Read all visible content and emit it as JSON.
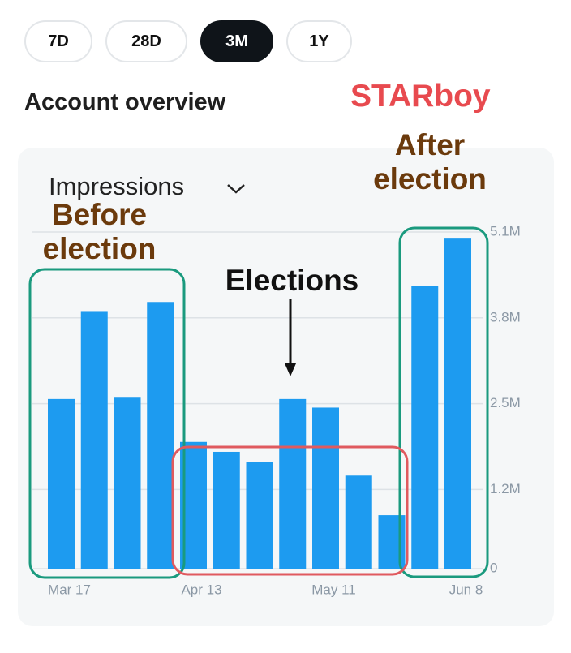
{
  "tabs": [
    "7D",
    "28D",
    "3M",
    "1Y"
  ],
  "header": {
    "title": "Account overview",
    "watermark": "STARboy"
  },
  "chart_data": {
    "type": "bar",
    "metric": "Impressions",
    "categories": [
      "Mar 17",
      null,
      null,
      null,
      "Apr 13",
      null,
      null,
      null,
      "May 11",
      null,
      null,
      null,
      "Jun 8"
    ],
    "values": [
      2.57,
      3.89,
      2.59,
      4.04,
      1.92,
      1.77,
      1.62,
      2.57,
      2.44,
      1.41,
      0.81,
      4.28,
      5.0
    ],
    "color": "#1d9bf0",
    "ylim": [
      0,
      5.1
    ],
    "yticks": [
      0,
      {
        "value": 1.2,
        "label": "1.2M"
      },
      {
        "value": 2.5,
        "label": "2.5M"
      },
      {
        "value": 3.8,
        "label": "3.8M"
      },
      {
        "value": 5.1,
        "label": "5.1M"
      }
    ],
    "grid": true,
    "annotations": [
      "Before election",
      "After election",
      "Elections"
    ]
  }
}
